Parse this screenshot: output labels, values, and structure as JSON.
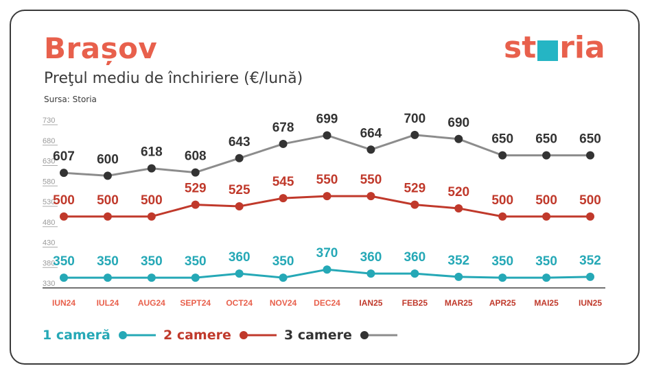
{
  "header": {
    "city": "Brașov",
    "subtitle": "Preţul mediu de închiriere (€/lună)",
    "source": "Sursa: Storia",
    "logo_left": "st",
    "logo_right": "ria"
  },
  "colors": {
    "accent": "#e8604c",
    "logo_box": "#25b5c4",
    "one_room": "#25a8b6",
    "two_rooms": "#c0392b",
    "three_rooms": "#8c8c8c",
    "three_rooms_label": "#333333",
    "axis": "#aaaaaa"
  },
  "chart_data": {
    "type": "line",
    "categories": [
      "IUN24",
      "IUL24",
      "AUG24",
      "SEPT24",
      "OCT24",
      "NOV24",
      "DEC24",
      "IAN25",
      "FEB25",
      "MAR25",
      "APR25",
      "MAI25",
      "IUN25"
    ],
    "category_colors": [
      "#e8604c",
      "#e8604c",
      "#e8604c",
      "#e8604c",
      "#e8604c",
      "#e8604c",
      "#e8604c",
      "#c0392b",
      "#c0392b",
      "#c0392b",
      "#c0392b",
      "#c0392b",
      "#c0392b"
    ],
    "yticks": [
      330,
      380,
      430,
      480,
      530,
      580,
      630,
      680,
      730
    ],
    "ylim": [
      330,
      730
    ],
    "series": [
      {
        "name": "1 cameră",
        "values": [
          350,
          350,
          350,
          350,
          360,
          350,
          370,
          360,
          360,
          352,
          350,
          350,
          352
        ]
      },
      {
        "name": "2 camere",
        "values": [
          500,
          500,
          500,
          529,
          525,
          545,
          550,
          550,
          529,
          520,
          500,
          500,
          500
        ]
      },
      {
        "name": "3 camere",
        "values": [
          607,
          600,
          618,
          608,
          643,
          678,
          699,
          664,
          700,
          690,
          650,
          650,
          650
        ]
      }
    ],
    "grid": false,
    "legend_position": "bottom-left"
  }
}
